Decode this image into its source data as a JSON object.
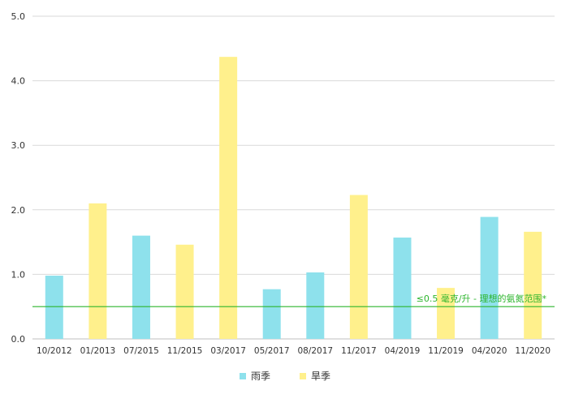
{
  "chart_data": {
    "type": "bar",
    "title": "",
    "xlabel": "",
    "ylabel": "",
    "categories": [
      "10/2012",
      "01/2013",
      "07/2015",
      "11/2015",
      "03/2017",
      "05/2017",
      "08/2017",
      "11/2017",
      "04/2019",
      "11/2019",
      "04/2020",
      "11/2020"
    ],
    "values": [
      0.98,
      2.1,
      1.6,
      1.46,
      4.37,
      0.77,
      1.03,
      2.23,
      1.57,
      0.79,
      1.89,
      1.66
    ],
    "series_of_bar": [
      "rain",
      "dry",
      "rain",
      "dry",
      "dry",
      "rain",
      "rain",
      "dry",
      "rain",
      "dry",
      "rain",
      "dry"
    ],
    "series": [
      {
        "key": "rain",
        "name": "雨季",
        "color": "#8ee1ec"
      },
      {
        "key": "dry",
        "name": "旱季",
        "color": "#fff08c"
      }
    ],
    "ylim": [
      0,
      5
    ],
    "yticks": [
      "0.0",
      "1.0",
      "2.0",
      "3.0",
      "4.0",
      "5.0"
    ],
    "ytick_values": [
      0,
      1,
      2,
      3,
      4,
      5
    ],
    "grid": true,
    "legend_position": "bottom-center",
    "threshold": {
      "value": 0.5,
      "label": "≤0.5 毫克/升 - 理想的氨氮范围*",
      "color": "#2db52d"
    }
  }
}
